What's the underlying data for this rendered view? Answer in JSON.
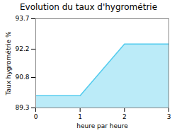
{
  "chart_data": {
    "type": "area",
    "title": "Evolution du taux d'hygrométrie",
    "xlabel": "heure par heure",
    "ylabel": "Taux hygrométrie %",
    "x": [
      0,
      1,
      2,
      3
    ],
    "values": [
      89.9,
      89.9,
      92.45,
      92.45
    ],
    "color": "#55ccee",
    "xlim": [
      0,
      3
    ],
    "ylim": [
      89.3,
      93.7
    ],
    "xticks": [
      0,
      1,
      2,
      3
    ],
    "yticks": [
      89.3,
      90.8,
      92.2,
      93.7
    ],
    "grid": false
  }
}
